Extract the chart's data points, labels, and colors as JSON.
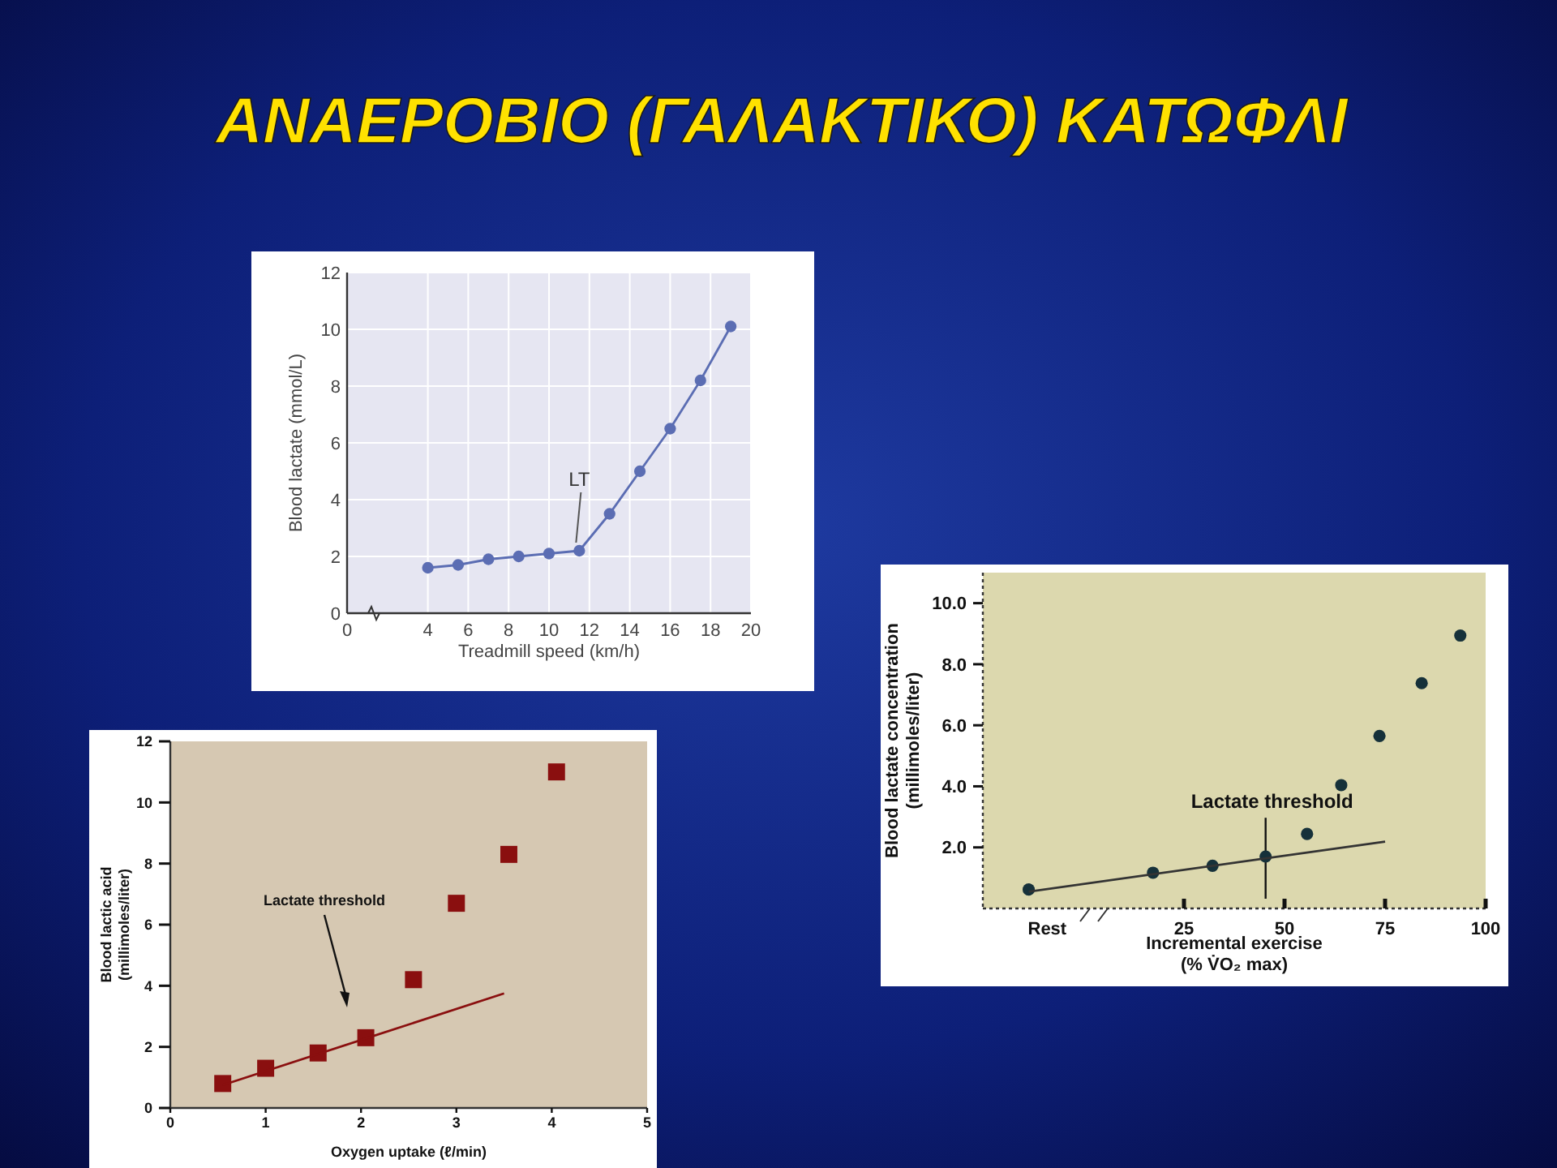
{
  "chart_data": [
    {
      "type": "line",
      "title": "ΑΝΑΕΡΟΒΙΟ (ΓΑΛΑΚΤΙΚΟ) ΚΑΤΩΦΛΙ",
      "xlabel": "Treadmill speed (km/h)",
      "ylabel": "Blood lactate (mmol/L)",
      "xlim": [
        0,
        20
      ],
      "ylim": [
        0,
        12
      ],
      "xticks": [
        0,
        4,
        6,
        8,
        10,
        12,
        14,
        16,
        18,
        20
      ],
      "yticks": [
        0,
        2,
        4,
        6,
        8,
        10,
        12
      ],
      "grid": true,
      "marker": "circle",
      "series": [
        {
          "color": "#5b6db3",
          "x": [
            4,
            5.5,
            7,
            8.5,
            10,
            11.5,
            13,
            14.5,
            16,
            17.5,
            19
          ],
          "values": [
            1.6,
            1.7,
            1.9,
            2.0,
            2.1,
            2.2,
            3.5,
            5.0,
            6.5,
            8.2,
            10.1
          ]
        }
      ],
      "annotations": [
        {
          "text": "LT",
          "x": 11.5,
          "y": 2.2
        }
      ]
    },
    {
      "type": "scatter",
      "xlabel": "Incremental exercise\n(% V̇O₂ max)",
      "ylabel": "Blood lactate concentration\n(millimoles/liter)",
      "xlim": [
        -25,
        100
      ],
      "ylim": [
        0,
        11
      ],
      "xticks": [
        {
          "value": -9,
          "label": "Rest"
        },
        25,
        50,
        75,
        100
      ],
      "yticks": [
        {
          "value": 2,
          "label": "2.0"
        },
        {
          "value": 4,
          "label": "4.0"
        },
        {
          "value": 6,
          "label": "6.0"
        },
        {
          "value": 8,
          "label": "8.0"
        },
        {
          "value": 10,
          "label": "10.0"
        }
      ],
      "marker": "circle",
      "series": [
        {
          "color": "#16313a",
          "x": [
            -13.6,
            17.3,
            32.1,
            45.3,
            55.6,
            64.1,
            73.6,
            84.1,
            93.7
          ],
          "values": [
            0.62,
            1.17,
            1.4,
            1.7,
            2.44,
            4.04,
            5.65,
            7.38,
            8.94
          ]
        },
        {
          "type": "line",
          "marker": "none",
          "color": "#333333",
          "x": [
            -13.6,
            75
          ],
          "values": [
            0.55,
            2.19
          ]
        }
      ],
      "ref_lines": [
        {
          "axis": "x",
          "value": 45.3,
          "label": "Lactate threshold"
        }
      ]
    },
    {
      "type": "scatter",
      "xlabel": "Oxygen uptake (ℓ/min)",
      "ylabel": "Blood lactic acid\n(millimoles/liter)",
      "xlim": [
        0,
        5
      ],
      "ylim": [
        0,
        12
      ],
      "xticks": [
        0,
        1,
        2,
        3,
        4,
        5
      ],
      "yticks": [
        0,
        2,
        4,
        6,
        8,
        10,
        12
      ],
      "marker": "square",
      "series": [
        {
          "color": "#8a0f0f",
          "x": [
            0.55,
            1.0,
            1.55,
            2.05,
            2.55,
            3.0,
            3.55,
            4.05
          ],
          "values": [
            0.8,
            1.3,
            1.8,
            2.3,
            4.2,
            6.7,
            8.3,
            11.0
          ]
        },
        {
          "type": "line",
          "marker": "none",
          "color": "#8a0f0f",
          "x": [
            0.55,
            3.5
          ],
          "values": [
            0.75,
            3.75
          ]
        }
      ],
      "annotations": [
        "Lactate threshold"
      ]
    }
  ]
}
